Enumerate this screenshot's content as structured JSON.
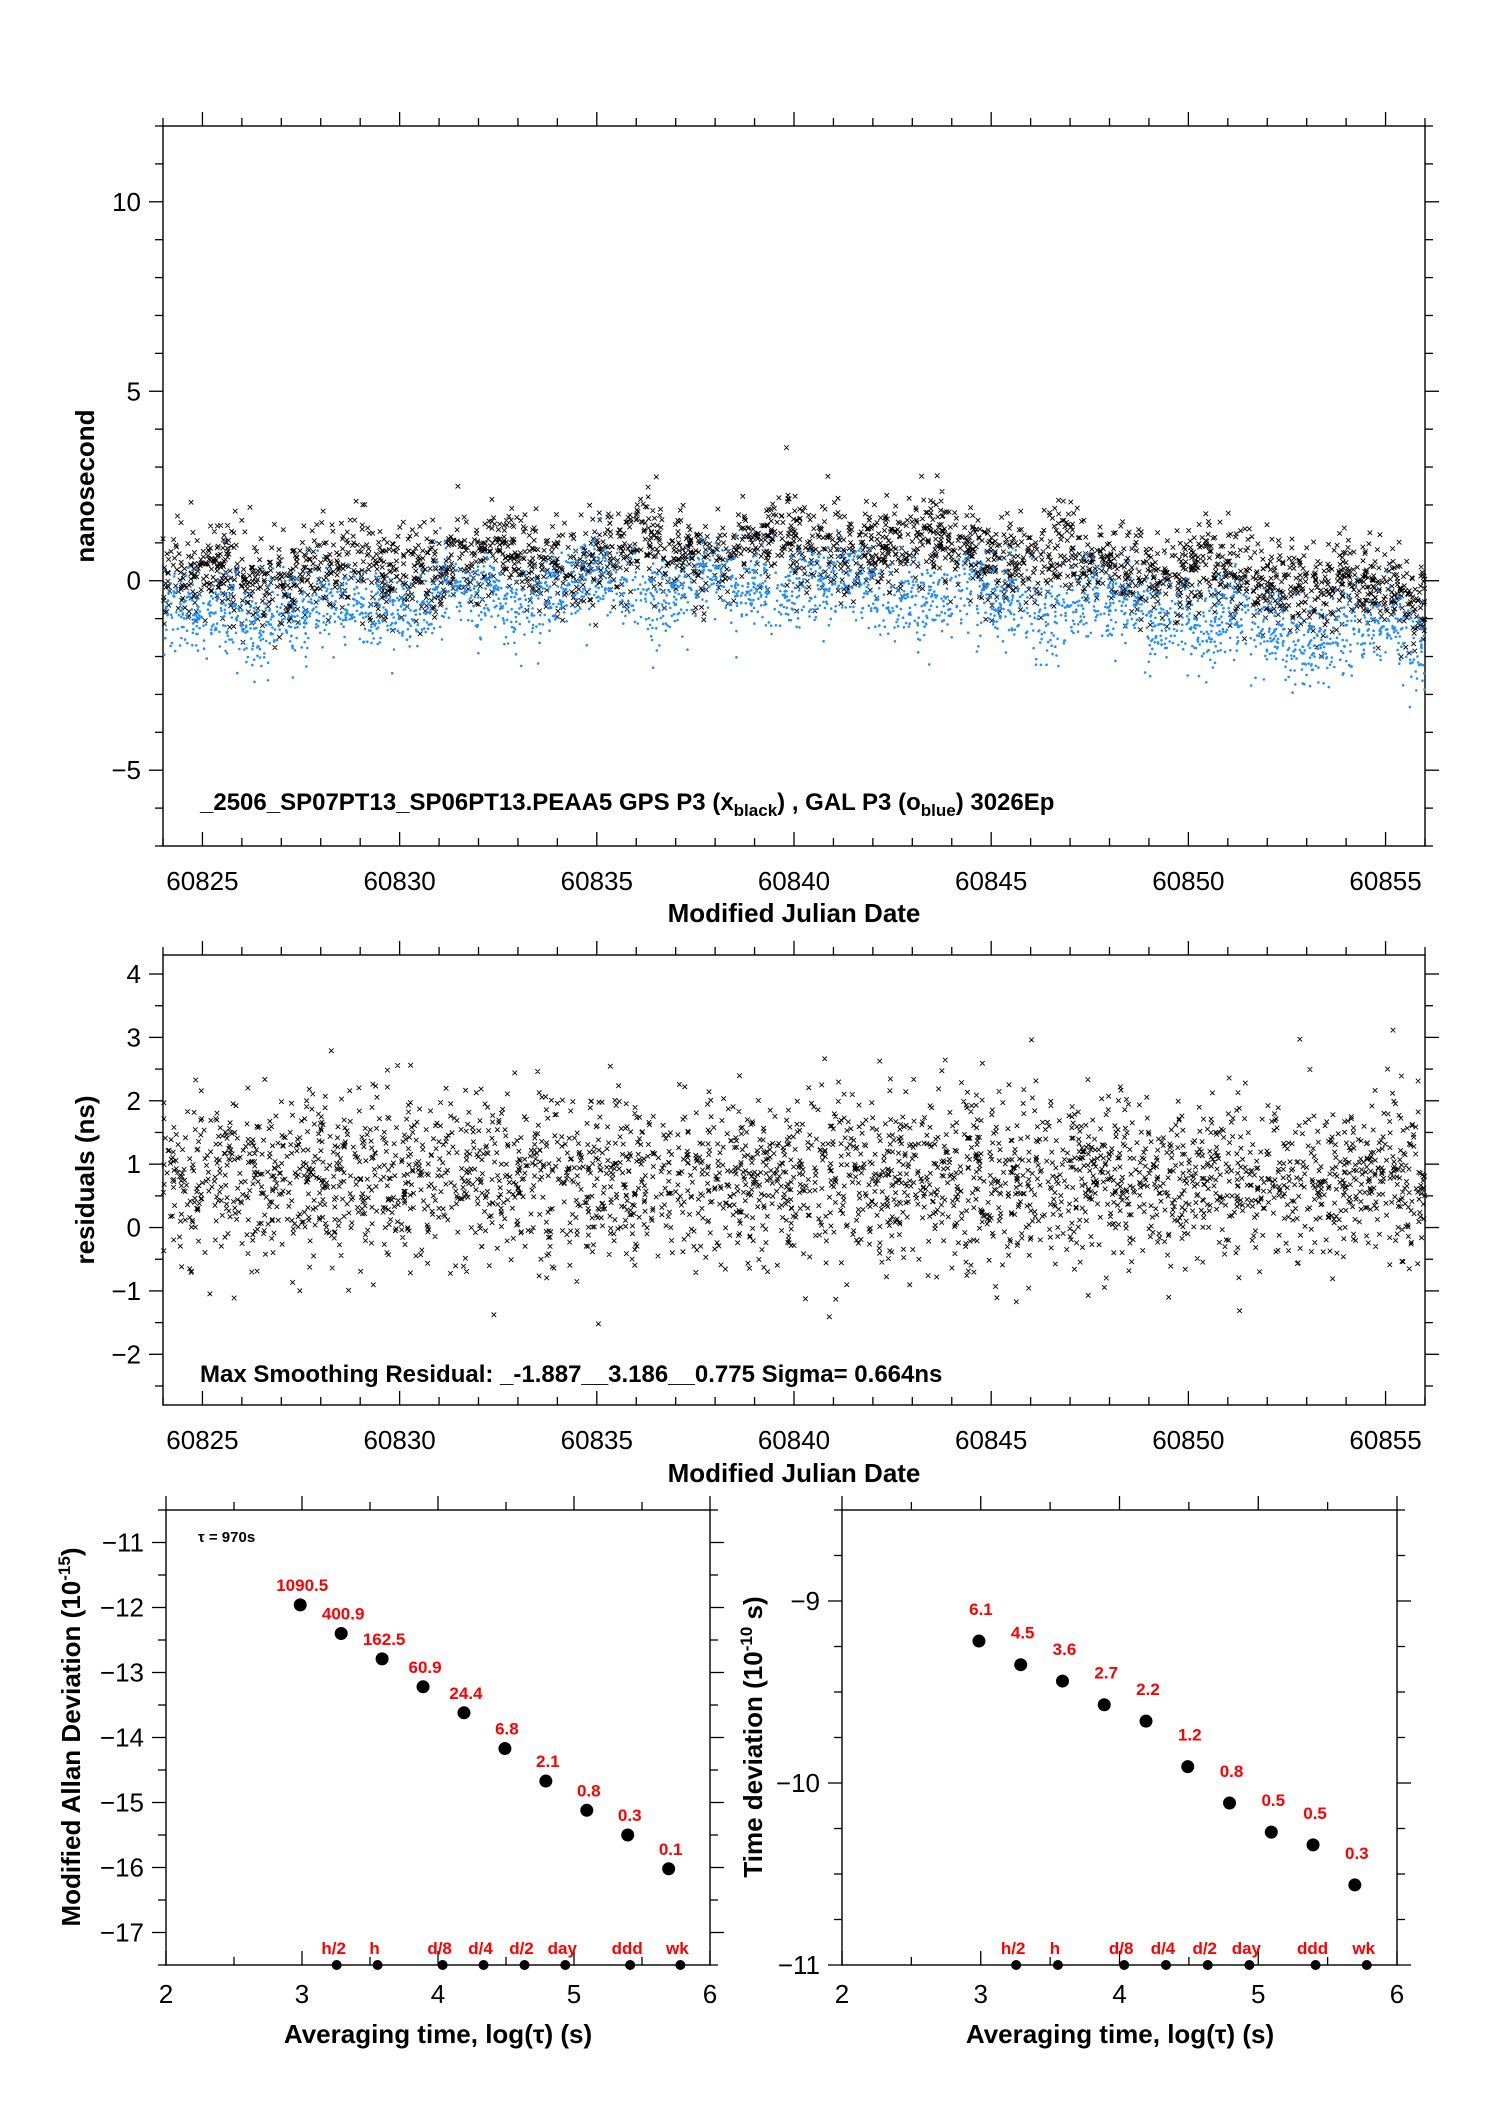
{
  "colors": {
    "gps": "#000000",
    "gal": "#1f8fff",
    "label": "#ff0000"
  },
  "chart_data": [
    {
      "id": "top",
      "type": "scatter",
      "title": "_2506_SP07PT13_SP06PT13.PEAA5     GPS P3 (x",
      "title_parts": {
        "t1": "_2506_SP07PT13_SP06PT13.PEAA5     GPS P3 (x",
        "s1": "black",
        "t2": ") ,  GAL P3 (o",
        "s2": "blue",
        "t3": ")  3026Ep"
      },
      "xlabel": "Modified Julian Date",
      "ylabel": "nanosecond",
      "xlim": [
        60824,
        60856
      ],
      "ylim": [
        -7,
        12
      ],
      "xticks": [
        "60825",
        "60830",
        "60835",
        "60840",
        "60845",
        "60850",
        "60855"
      ],
      "yticks": [
        "-5",
        "0",
        "5",
        "10"
      ],
      "series": [
        {
          "marker": "x",
          "color": "#000000",
          "n": 3000,
          "spread": 0.6,
          "trend": [
            [
              60824,
              -0.1
            ],
            [
              60828,
              0.2
            ],
            [
              60832,
              0.5
            ],
            [
              60836,
              0.7
            ],
            [
              60840,
              0.9
            ],
            [
              60844,
              0.9
            ],
            [
              60848,
              0.4
            ],
            [
              60852,
              0.0
            ],
            [
              60856,
              -0.4
            ]
          ]
        },
        {
          "marker": "o",
          "color": "#1f8fff",
          "n": 3000,
          "spread": 0.55,
          "trend": [
            [
              60824,
              -1.0
            ],
            [
              60828,
              -0.8
            ],
            [
              60832,
              -0.4
            ],
            [
              60836,
              -0.2
            ],
            [
              60840,
              -0.1
            ],
            [
              60844,
              -0.5
            ],
            [
              60848,
              -0.7
            ],
            [
              60852,
              -1.4
            ],
            [
              60856,
              -1.5
            ]
          ]
        }
      ]
    },
    {
      "id": "mid",
      "type": "scatter",
      "xlabel": "Modified Julian Date",
      "ylabel": "residuals (ns)",
      "xlim": [
        60824,
        60856
      ],
      "ylim": [
        -2.8,
        4.3
      ],
      "xticks": [
        "60825",
        "60830",
        "60835",
        "60840",
        "60845",
        "60850",
        "60855"
      ],
      "yticks": [
        "-2",
        "-1",
        "0",
        "1",
        "2",
        "3",
        "4"
      ],
      "annotation": "Max Smoothing Residual: _-1.887__3.186__0.775  Sigma= 0.664ns",
      "series": [
        {
          "marker": "x",
          "color": "#000000",
          "n": 3000,
          "center": 0.775,
          "sigma": 0.664,
          "min": -1.887,
          "max": 3.186
        }
      ]
    },
    {
      "id": "mdev",
      "type": "scatter",
      "xlabel": "Averaging time, log(τ) (s)",
      "ylabel": "Modified Allan Deviation (10",
      "ylabel_sup": "-15",
      "ylabel_end": ")",
      "annotation": "τ = 970s",
      "xlim": [
        2,
        6
      ],
      "ylim": [
        -17.5,
        -10.5
      ],
      "xticks": [
        "2",
        "3",
        "4",
        "5",
        "6"
      ],
      "yticks": [
        "-17",
        "-16",
        "-15",
        "-14",
        "-13",
        "-12",
        "-11"
      ],
      "x": [
        2.987,
        3.288,
        3.589,
        3.89,
        4.191,
        4.492,
        4.793,
        5.094,
        5.395,
        5.696
      ],
      "y": [
        -11.96,
        -12.4,
        -12.79,
        -13.22,
        -13.62,
        -14.17,
        -14.67,
        -15.12,
        -15.5,
        -16.02
      ],
      "point_labels": [
        "1090.5",
        "400.9",
        "162.5",
        "60.9",
        "24.4",
        "6.8",
        "2.1",
        "0.8",
        "0.3",
        "0.1"
      ],
      "markers": [
        {
          "label": "h/2",
          "x": 3.255
        },
        {
          "label": "h",
          "x": 3.556
        },
        {
          "label": "d/8",
          "x": 4.034
        },
        {
          "label": "d/4",
          "x": 4.335
        },
        {
          "label": "d/2",
          "x": 4.636
        },
        {
          "label": "day",
          "x": 4.936
        },
        {
          "label": "ddd",
          "x": 5.413
        },
        {
          "label": "wk",
          "x": 5.782
        }
      ]
    },
    {
      "id": "tdev",
      "type": "scatter",
      "xlabel": "Averaging time, log(τ) (s)",
      "ylabel": "Time deviation (10",
      "ylabel_sup": "-10",
      "ylabel_end": " s)",
      "xlim": [
        2,
        6
      ],
      "ylim": [
        -11,
        -8.5
      ],
      "xticks": [
        "2",
        "3",
        "4",
        "5",
        "6"
      ],
      "yticks": [
        "-11",
        "-10",
        "-9"
      ],
      "x": [
        2.987,
        3.288,
        3.589,
        3.89,
        4.191,
        4.492,
        4.793,
        5.094,
        5.395,
        5.696
      ],
      "y": [
        -9.22,
        -9.35,
        -9.44,
        -9.57,
        -9.66,
        -9.91,
        -10.11,
        -10.27,
        -10.34,
        -10.56
      ],
      "point_labels": [
        "6.1",
        "4.5",
        "3.6",
        "2.7",
        "2.2",
        "1.2",
        "0.8",
        "0.5",
        "0.5",
        "0.3"
      ],
      "markers": [
        {
          "label": "h/2",
          "x": 3.255
        },
        {
          "label": "h",
          "x": 3.556
        },
        {
          "label": "d/8",
          "x": 4.034
        },
        {
          "label": "d/4",
          "x": 4.335
        },
        {
          "label": "d/2",
          "x": 4.636
        },
        {
          "label": "day",
          "x": 4.936
        },
        {
          "label": "ddd",
          "x": 5.413
        },
        {
          "label": "wk",
          "x": 5.782
        }
      ]
    }
  ]
}
